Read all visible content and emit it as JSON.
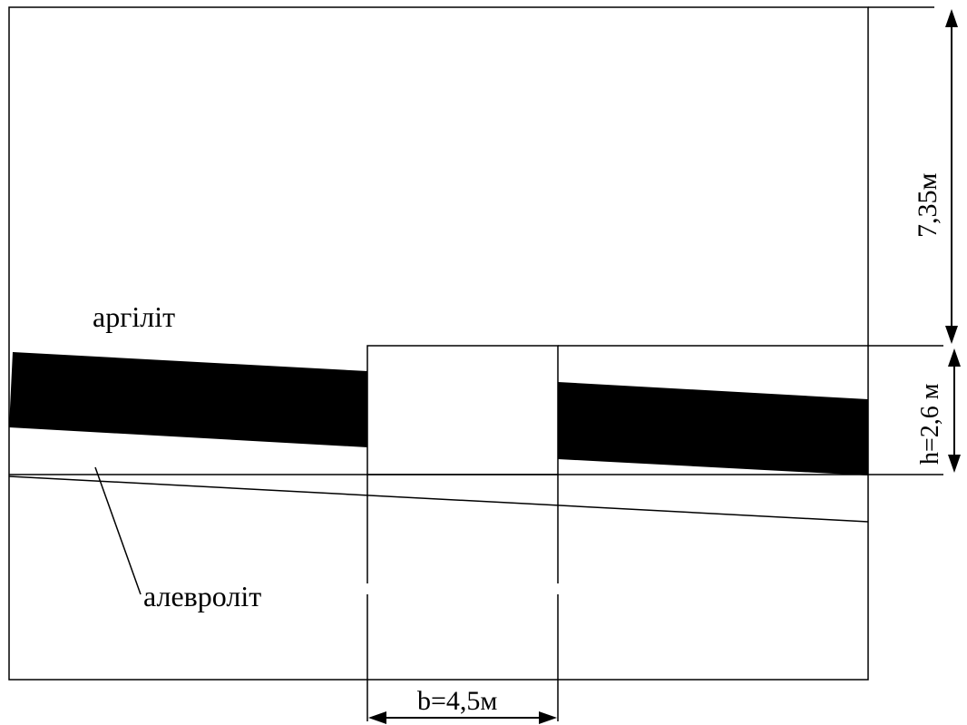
{
  "labels": {
    "upper_rock": "аргіліт",
    "lower_rock": "алевроліт",
    "overburden_thickness": "7,35м",
    "opening_height": "h=2,6 м",
    "opening_width": "b=4,5м"
  },
  "colors": {
    "line": "#000000",
    "seam": "#000000",
    "background": "#ffffff"
  }
}
